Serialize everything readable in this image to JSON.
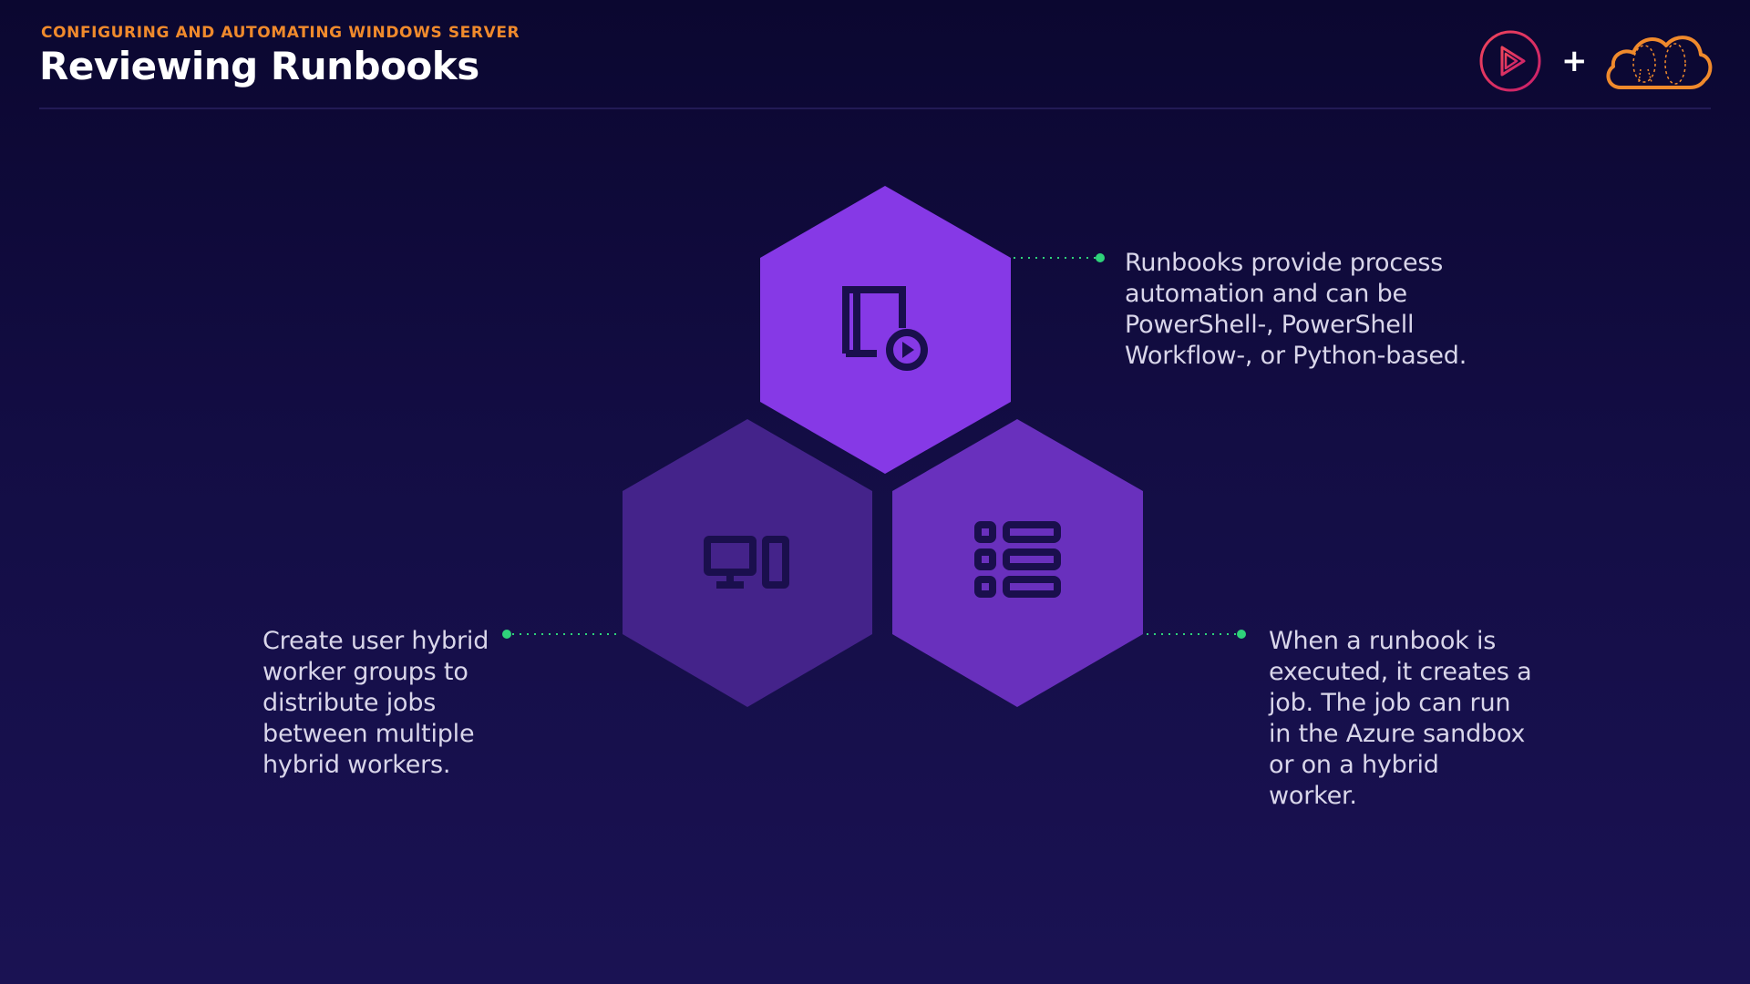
{
  "header": {
    "eyebrow": "CONFIGURING AND AUTOMATING WINDOWS SERVER",
    "title": "Reviewing Runbooks",
    "plus": "+",
    "logos": [
      "pluralsight-play-logo",
      "cloud-logo"
    ]
  },
  "hexagons": [
    {
      "icon": "runbook-play-icon",
      "color": "#8639e6"
    },
    {
      "icon": "computer-server-icon",
      "color": "#44238a"
    },
    {
      "icon": "job-list-icon",
      "color": "#6930bd"
    }
  ],
  "callouts": {
    "top": "Runbooks provide process automation and can be PowerShell-, PowerShell Workflow-, or Python-based.",
    "left": "Create user hybrid worker groups to distribute jobs between multiple hybrid workers.",
    "right": "When a runbook is executed, it creates a job. The job can run in the Azure sandbox or on a hybrid worker."
  },
  "colors": {
    "accent_orange": "#f08a2c",
    "connector_green": "#2fd27a",
    "icon_dark": "#1a0f4d",
    "logo_red": "#e8344c"
  }
}
